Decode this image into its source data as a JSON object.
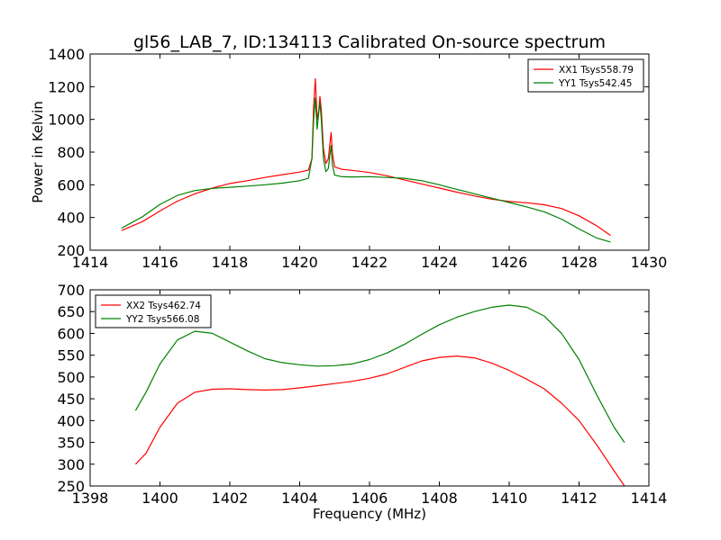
{
  "figure": {
    "title": "gl56_LAB_7, ID:134113 Calibrated On-source spectrum"
  },
  "chart_data": [
    {
      "type": "line",
      "title": "gl56_LAB_7, ID:134113 Calibrated On-source spectrum",
      "xlabel": "",
      "ylabel": "Power in Kelvin",
      "xlim": [
        1414,
        1430
      ],
      "ylim": [
        200,
        1400
      ],
      "xticks": [
        1414,
        1416,
        1418,
        1420,
        1422,
        1424,
        1426,
        1428,
        1430
      ],
      "yticks": [
        200,
        400,
        600,
        800,
        1000,
        1200,
        1400
      ],
      "legend": "top-right",
      "series": [
        {
          "name": "XX1 Tsys558.79",
          "color": "#ff0000",
          "points": [
            [
              1414.9,
              320
            ],
            [
              1415.5,
              375
            ],
            [
              1416,
              440
            ],
            [
              1416.5,
              500
            ],
            [
              1417,
              545
            ],
            [
              1417.5,
              580
            ],
            [
              1418,
              608
            ],
            [
              1418.5,
              625
            ],
            [
              1419,
              645
            ],
            [
              1419.5,
              662
            ],
            [
              1420,
              678
            ],
            [
              1420.25,
              690
            ],
            [
              1420.35,
              760
            ],
            [
              1420.4,
              1080
            ],
            [
              1420.45,
              1248
            ],
            [
              1420.5,
              1000
            ],
            [
              1420.55,
              1060
            ],
            [
              1420.58,
              1140
            ],
            [
              1420.62,
              1060
            ],
            [
              1420.68,
              820
            ],
            [
              1420.75,
              730
            ],
            [
              1420.82,
              760
            ],
            [
              1420.87,
              860
            ],
            [
              1420.9,
              920
            ],
            [
              1420.94,
              790
            ],
            [
              1421,
              710
            ],
            [
              1421.2,
              695
            ],
            [
              1421.5,
              688
            ],
            [
              1422,
              675
            ],
            [
              1422.5,
              655
            ],
            [
              1423,
              630
            ],
            [
              1423.5,
              605
            ],
            [
              1424,
              580
            ],
            [
              1424.5,
              555
            ],
            [
              1425,
              532
            ],
            [
              1425.5,
              512
            ],
            [
              1426,
              498
            ],
            [
              1426.5,
              490
            ],
            [
              1427,
              478
            ],
            [
              1427.5,
              455
            ],
            [
              1428,
              410
            ],
            [
              1428.5,
              350
            ],
            [
              1428.9,
              290
            ]
          ]
        },
        {
          "name": "YY1 Tsys542.45",
          "color": "#008000",
          "points": [
            [
              1414.9,
              335
            ],
            [
              1415.5,
              405
            ],
            [
              1416,
              480
            ],
            [
              1416.5,
              535
            ],
            [
              1417,
              565
            ],
            [
              1417.5,
              578
            ],
            [
              1418,
              585
            ],
            [
              1418.5,
              592
            ],
            [
              1419,
              600
            ],
            [
              1419.5,
              610
            ],
            [
              1420,
              625
            ],
            [
              1420.25,
              640
            ],
            [
              1420.35,
              760
            ],
            [
              1420.4,
              1000
            ],
            [
              1420.45,
              1130
            ],
            [
              1420.5,
              940
            ],
            [
              1420.55,
              1050
            ],
            [
              1420.58,
              1100
            ],
            [
              1420.62,
              1000
            ],
            [
              1420.68,
              760
            ],
            [
              1420.75,
              680
            ],
            [
              1420.82,
              700
            ],
            [
              1420.87,
              790
            ],
            [
              1420.9,
              840
            ],
            [
              1420.94,
              720
            ],
            [
              1421,
              660
            ],
            [
              1421.2,
              650
            ],
            [
              1421.5,
              648
            ],
            [
              1422,
              650
            ],
            [
              1422.5,
              645
            ],
            [
              1423,
              640
            ],
            [
              1423.5,
              625
            ],
            [
              1424,
              600
            ],
            [
              1424.5,
              572
            ],
            [
              1425,
              545
            ],
            [
              1425.5,
              518
            ],
            [
              1426,
              492
            ],
            [
              1426.5,
              465
            ],
            [
              1427,
              435
            ],
            [
              1427.5,
              390
            ],
            [
              1428,
              330
            ],
            [
              1428.5,
              275
            ],
            [
              1428.9,
              250
            ]
          ]
        }
      ]
    },
    {
      "type": "line",
      "title": "",
      "xlabel": "Frequency (MHz)",
      "ylabel": "",
      "xlim": [
        1398,
        1414
      ],
      "ylim": [
        250,
        700
      ],
      "xticks": [
        1398,
        1400,
        1402,
        1404,
        1406,
        1408,
        1410,
        1412,
        1414
      ],
      "yticks": [
        250,
        300,
        350,
        400,
        450,
        500,
        550,
        600,
        650,
        700
      ],
      "legend": "top-left",
      "series": [
        {
          "name": "XX2 Tsys462.74",
          "color": "#ff0000",
          "points": [
            [
              1399.3,
              300
            ],
            [
              1399.6,
              325
            ],
            [
              1400,
              385
            ],
            [
              1400.5,
              440
            ],
            [
              1401,
              465
            ],
            [
              1401.5,
              472
            ],
            [
              1402,
              473
            ],
            [
              1402.5,
              471
            ],
            [
              1403,
              470
            ],
            [
              1403.5,
              471
            ],
            [
              1404,
              475
            ],
            [
              1404.5,
              480
            ],
            [
              1405,
              485
            ],
            [
              1405.5,
              490
            ],
            [
              1406,
              497
            ],
            [
              1406.5,
              507
            ],
            [
              1407,
              522
            ],
            [
              1407.5,
              537
            ],
            [
              1408,
              545
            ],
            [
              1408.5,
              548
            ],
            [
              1409,
              544
            ],
            [
              1409.5,
              532
            ],
            [
              1410,
              515
            ],
            [
              1410.5,
              495
            ],
            [
              1411,
              473
            ],
            [
              1411.5,
              440
            ],
            [
              1412,
              400
            ],
            [
              1412.5,
              345
            ],
            [
              1413,
              285
            ],
            [
              1413.3,
              250
            ]
          ]
        },
        {
          "name": "YY2 Tsys566.08",
          "color": "#008000",
          "points": [
            [
              1399.3,
              423
            ],
            [
              1399.6,
              465
            ],
            [
              1400,
              530
            ],
            [
              1400.5,
              585
            ],
            [
              1401,
              605
            ],
            [
              1401.5,
              600
            ],
            [
              1402,
              580
            ],
            [
              1402.5,
              560
            ],
            [
              1403,
              542
            ],
            [
              1403.5,
              533
            ],
            [
              1404,
              528
            ],
            [
              1404.5,
              525
            ],
            [
              1405,
              526
            ],
            [
              1405.5,
              530
            ],
            [
              1406,
              540
            ],
            [
              1406.5,
              555
            ],
            [
              1407,
              575
            ],
            [
              1407.5,
              598
            ],
            [
              1408,
              620
            ],
            [
              1408.5,
              637
            ],
            [
              1409,
              650
            ],
            [
              1409.5,
              660
            ],
            [
              1410,
              665
            ],
            [
              1410.5,
              660
            ],
            [
              1411,
              640
            ],
            [
              1411.5,
              600
            ],
            [
              1412,
              540
            ],
            [
              1412.5,
              460
            ],
            [
              1413,
              385
            ],
            [
              1413.3,
              350
            ]
          ]
        }
      ]
    }
  ]
}
